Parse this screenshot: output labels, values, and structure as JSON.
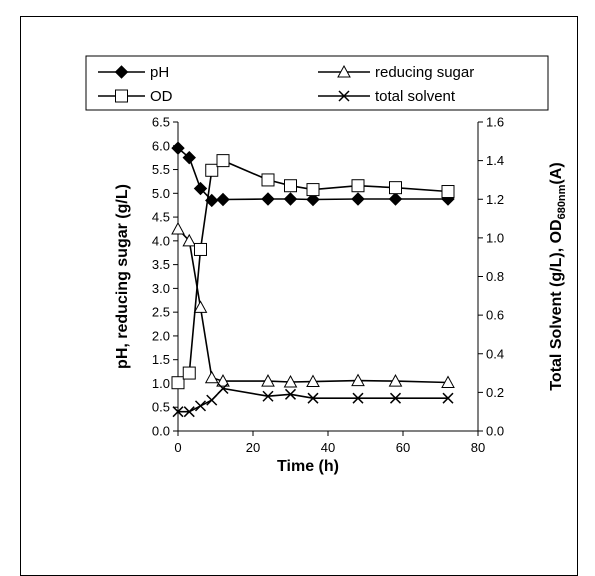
{
  "chart_data": {
    "type": "line",
    "xlabel": "Time (h)",
    "ylabel_left": "pH, reducing sugar (g/L)",
    "ylabel_right_parts": [
      "Total Solvent (g/L), OD",
      "680nm",
      "(A)"
    ],
    "xlim": [
      0,
      80
    ],
    "ylim_left": [
      0.0,
      6.5
    ],
    "ylim_right": [
      0.0,
      1.6
    ],
    "x_ticks": [
      "0",
      "20",
      "40",
      "60",
      "80"
    ],
    "y_left_ticks": [
      "0.0",
      "0.5",
      "1.0",
      "1.5",
      "2.0",
      "2.5",
      "3.0",
      "3.5",
      "4.0",
      "4.5",
      "5.0",
      "5.5",
      "6.0",
      "6.5"
    ],
    "y_right_ticks": [
      "0.0",
      "0.2",
      "0.4",
      "0.6",
      "0.8",
      "1.0",
      "1.2",
      "1.4",
      "1.6"
    ],
    "legend_position": "top",
    "series": [
      {
        "name": "pH",
        "axis": "left",
        "marker": "diamond",
        "x": [
          0,
          3,
          6,
          9,
          12,
          24,
          30,
          36,
          48,
          58,
          72
        ],
        "y": [
          5.95,
          5.75,
          5.1,
          4.85,
          4.87,
          4.88,
          4.88,
          4.87,
          4.88,
          4.88,
          4.88
        ]
      },
      {
        "name": "reducing sugar",
        "axis": "left",
        "marker": "triangle",
        "x": [
          0,
          3,
          6,
          9,
          12,
          24,
          30,
          36,
          48,
          58,
          72
        ],
        "y": [
          4.25,
          4.0,
          2.6,
          1.12,
          1.05,
          1.05,
          1.03,
          1.04,
          1.06,
          1.05,
          1.02
        ]
      },
      {
        "name": "OD",
        "axis": "right",
        "marker": "square",
        "x": [
          0,
          3,
          6,
          9,
          12,
          24,
          30,
          36,
          48,
          58,
          72
        ],
        "y": [
          0.25,
          0.3,
          0.94,
          1.35,
          1.4,
          1.3,
          1.27,
          1.25,
          1.27,
          1.26,
          1.24
        ]
      },
      {
        "name": "total solvent",
        "axis": "right",
        "marker": "x",
        "x": [
          0,
          3,
          6,
          9,
          12,
          24,
          30,
          36,
          48,
          58,
          72
        ],
        "y": [
          0.1,
          0.1,
          0.13,
          0.16,
          0.22,
          0.18,
          0.19,
          0.17,
          0.17,
          0.17,
          0.17
        ]
      }
    ]
  }
}
